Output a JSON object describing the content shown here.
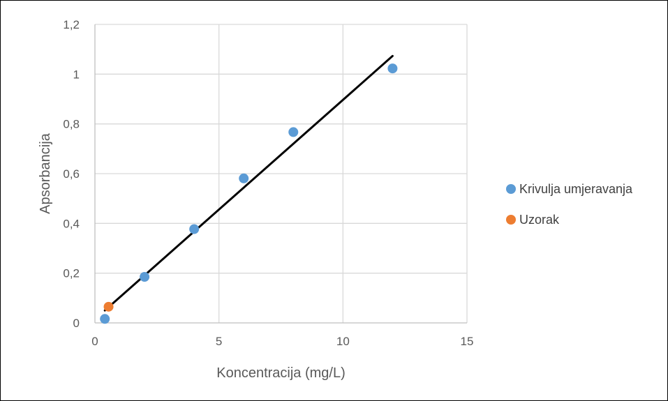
{
  "chart_data": {
    "type": "scatter",
    "title": "",
    "xlabel": "Koncentracija (mg/L)",
    "ylabel": "Apsorbancija",
    "xlim": [
      0,
      15
    ],
    "ylim": [
      0,
      1.2
    ],
    "x_ticks": [
      "0",
      "5",
      "10",
      "15"
    ],
    "y_ticks": [
      "0",
      "0,2",
      "0,4",
      "0,6",
      "0,8",
      "1",
      "1,2"
    ],
    "grid": true,
    "legend_position": "right",
    "series": [
      {
        "name": "Krivulja umjeravanja",
        "color": "#5B9BD5",
        "points": [
          {
            "x": 0.4,
            "y": 0.016
          },
          {
            "x": 2,
            "y": 0.185
          },
          {
            "x": 4,
            "y": 0.377
          },
          {
            "x": 6,
            "y": 0.581
          },
          {
            "x": 8,
            "y": 0.767
          },
          {
            "x": 12,
            "y": 1.023
          }
        ]
      },
      {
        "name": "Uzorak",
        "color": "#ED7D31",
        "points": [
          {
            "x": 0.55,
            "y": 0.065
          }
        ]
      }
    ],
    "trendline": {
      "color": "#000000",
      "from": {
        "x": 0.4,
        "y": 0.05
      },
      "to": {
        "x": 12,
        "y": 1.073
      }
    }
  }
}
